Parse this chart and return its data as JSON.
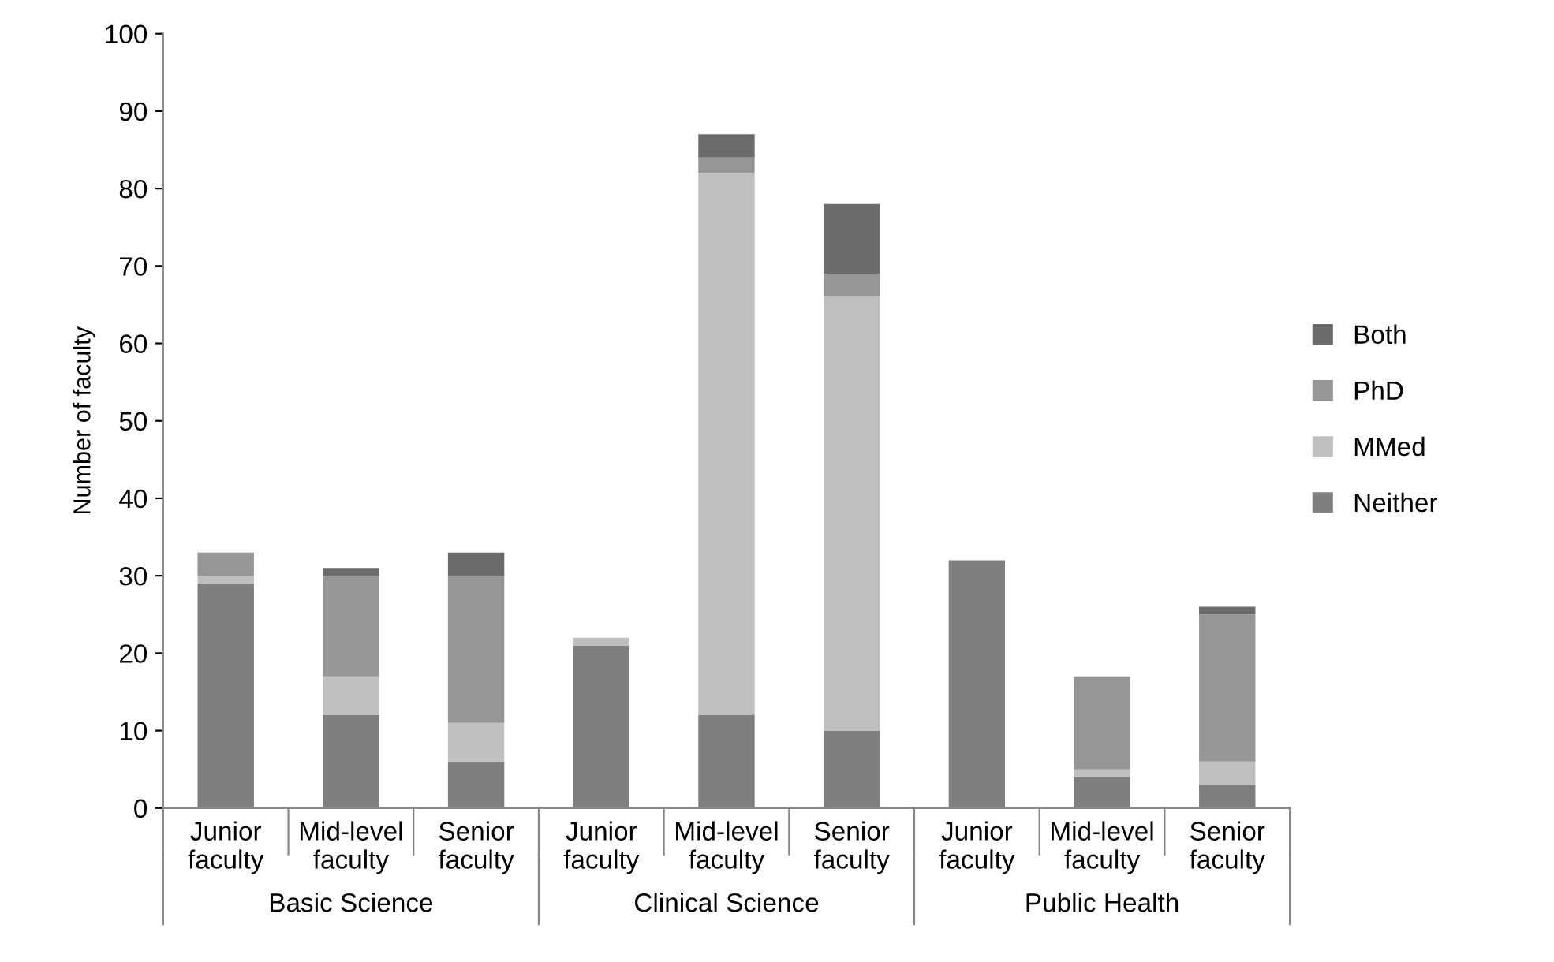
{
  "chart_data": {
    "type": "bar",
    "stacked": true,
    "ylabel": "Number of faculty",
    "categories": [
      "Junior\nfaculty",
      "Mid-level\nfaculty",
      "Senior\nfaculty",
      "Junior\nfaculty",
      "Mid-level\nfaculty",
      "Senior\nfaculty",
      "Junior\nfaculty",
      "Mid-level\nfaculty",
      "Senior\nfaculty"
    ],
    "series": [
      {
        "name": "Neither",
        "color": "#7f7f7f",
        "values": [
          29,
          12,
          6,
          21,
          12,
          10,
          32,
          4,
          3
        ]
      },
      {
        "name": "MMed",
        "color": "#bfbfbf",
        "values": [
          1,
          5,
          5,
          1,
          70,
          56,
          0,
          1,
          3
        ]
      },
      {
        "name": "PhD",
        "color": "#969696",
        "values": [
          3,
          13,
          19,
          0,
          2,
          3,
          0,
          12,
          19
        ]
      },
      {
        "name": "Both",
        "color": "#6c6c6c",
        "values": [
          0,
          1,
          3,
          0,
          3,
          9,
          0,
          0,
          1
        ]
      }
    ],
    "annotations": [
      "Basic Science",
      "Clinical Science",
      "Public Health"
    ],
    "ylim": [
      0,
      100
    ],
    "yticks": [
      0,
      10,
      20,
      30,
      40,
      50,
      60,
      70,
      80,
      90,
      100
    ],
    "grid": false,
    "legend": "right"
  }
}
